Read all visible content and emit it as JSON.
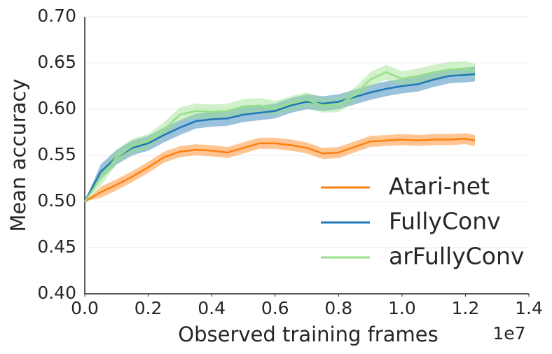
{
  "chart_data": {
    "type": "line",
    "xlabel": "Observed training frames",
    "ylabel": "Mean accuracy",
    "x_offset_label": "1e7",
    "x": [
      0,
      0.05,
      0.1,
      0.15,
      0.2,
      0.25,
      0.3,
      0.35,
      0.4,
      0.45,
      0.5,
      0.55,
      0.6,
      0.65,
      0.7,
      0.75,
      0.8,
      0.85,
      0.9,
      0.95,
      1.0,
      1.05,
      1.1,
      1.15,
      1.2,
      1.23
    ],
    "series": [
      {
        "name": "Atari-net",
        "color": "#ff7f0e",
        "values": [
          0.5,
          0.51,
          0.518,
          0.527,
          0.537,
          0.548,
          0.554,
          0.556,
          0.555,
          0.553,
          0.558,
          0.563,
          0.563,
          0.561,
          0.558,
          0.552,
          0.553,
          0.559,
          0.565,
          0.566,
          0.567,
          0.566,
          0.567,
          0.567,
          0.568,
          0.566
        ],
        "lower": [
          0.5,
          0.504,
          0.512,
          0.521,
          0.531,
          0.542,
          0.548,
          0.55,
          0.549,
          0.547,
          0.552,
          0.557,
          0.557,
          0.555,
          0.552,
          0.546,
          0.547,
          0.553,
          0.559,
          0.56,
          0.561,
          0.56,
          0.561,
          0.561,
          0.562,
          0.56
        ],
        "upper": [
          0.5,
          0.516,
          0.524,
          0.533,
          0.543,
          0.554,
          0.56,
          0.562,
          0.561,
          0.559,
          0.564,
          0.569,
          0.569,
          0.567,
          0.564,
          0.558,
          0.559,
          0.565,
          0.571,
          0.572,
          0.573,
          0.572,
          0.573,
          0.573,
          0.574,
          0.572
        ]
      },
      {
        "name": "FullyConv",
        "color": "#1f77b4",
        "values": [
          0.5,
          0.532,
          0.548,
          0.558,
          0.563,
          0.572,
          0.58,
          0.587,
          0.589,
          0.59,
          0.594,
          0.596,
          0.598,
          0.604,
          0.608,
          0.606,
          0.608,
          0.613,
          0.618,
          0.622,
          0.625,
          0.627,
          0.632,
          0.636,
          0.637,
          0.638
        ],
        "lower": [
          0.5,
          0.524,
          0.54,
          0.55,
          0.555,
          0.564,
          0.572,
          0.579,
          0.581,
          0.582,
          0.586,
          0.588,
          0.59,
          0.596,
          0.6,
          0.598,
          0.6,
          0.605,
          0.61,
          0.614,
          0.617,
          0.619,
          0.624,
          0.628,
          0.629,
          0.63
        ],
        "upper": [
          0.5,
          0.54,
          0.556,
          0.566,
          0.571,
          0.58,
          0.588,
          0.595,
          0.597,
          0.598,
          0.602,
          0.604,
          0.606,
          0.612,
          0.616,
          0.614,
          0.616,
          0.621,
          0.626,
          0.63,
          0.633,
          0.635,
          0.64,
          0.644,
          0.645,
          0.646
        ]
      },
      {
        "name": "arFullyConv",
        "color": "#98df8a",
        "values": [
          0.5,
          0.525,
          0.548,
          0.56,
          0.565,
          0.578,
          0.594,
          0.598,
          0.597,
          0.598,
          0.603,
          0.604,
          0.601,
          0.606,
          0.61,
          0.604,
          0.605,
          0.615,
          0.632,
          0.64,
          0.633,
          0.636,
          0.64,
          0.643,
          0.644,
          0.641
        ],
        "lower": [
          0.5,
          0.517,
          0.54,
          0.552,
          0.557,
          0.57,
          0.586,
          0.59,
          0.589,
          0.59,
          0.595,
          0.596,
          0.593,
          0.598,
          0.602,
          0.596,
          0.597,
          0.607,
          0.624,
          0.632,
          0.625,
          0.628,
          0.632,
          0.635,
          0.636,
          0.633
        ],
        "upper": [
          0.5,
          0.533,
          0.556,
          0.568,
          0.573,
          0.586,
          0.602,
          0.606,
          0.605,
          0.606,
          0.611,
          0.612,
          0.609,
          0.614,
          0.618,
          0.612,
          0.613,
          0.623,
          0.64,
          0.648,
          0.641,
          0.644,
          0.648,
          0.651,
          0.652,
          0.649
        ]
      }
    ],
    "xlim": [
      0,
      1.4
    ],
    "xticks": [
      {
        "value": 0,
        "label": "0.0"
      },
      {
        "value": 0.2,
        "label": "0.2"
      },
      {
        "value": 0.4,
        "label": "0.4"
      },
      {
        "value": 0.6,
        "label": "0.6"
      },
      {
        "value": 0.8,
        "label": "0.8"
      },
      {
        "value": 1.0,
        "label": "1.0"
      },
      {
        "value": 1.2,
        "label": "1.2"
      },
      {
        "value": 1.4,
        "label": "1.4"
      }
    ],
    "ylim": [
      0.4,
      0.7
    ],
    "yticks": [
      {
        "value": 0.4,
        "label": "0.40"
      },
      0.45,
      {
        "value": 0.5,
        "label": "0.50"
      },
      0.55,
      {
        "value": 0.6,
        "label": "0.60"
      },
      0.65,
      {
        "value": 0.7,
        "label": "0.70"
      }
    ],
    "grid": true,
    "legend": "lower right"
  }
}
